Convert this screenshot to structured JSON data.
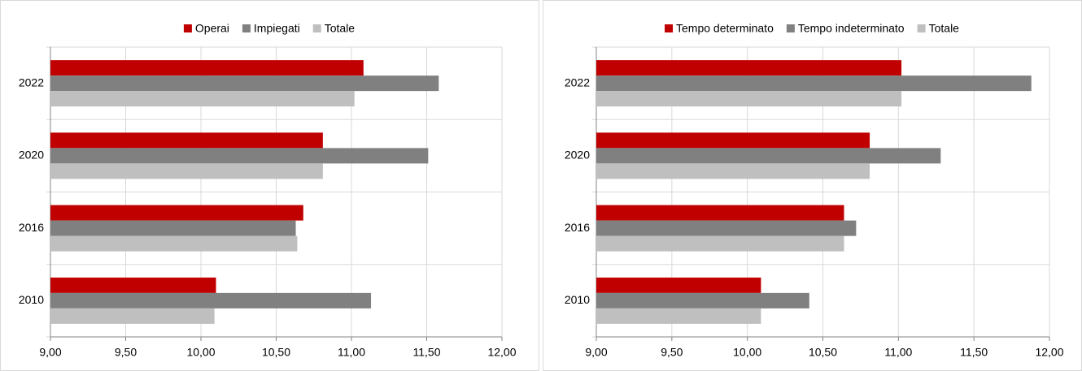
{
  "chart_data": [
    {
      "type": "hbar",
      "categories": [
        "2010",
        "2016",
        "2020",
        "2022"
      ],
      "series": [
        {
          "name": "Operai",
          "color": "#c00000",
          "values": [
            10.1,
            10.68,
            10.81,
            11.08
          ]
        },
        {
          "name": "Impiegati",
          "color": "#808080",
          "values": [
            11.13,
            10.63,
            11.51,
            11.58
          ]
        },
        {
          "name": "Totale",
          "color": "#bfbfbf",
          "values": [
            10.09,
            10.64,
            10.81,
            11.02
          ]
        }
      ],
      "xlim": [
        9,
        12
      ],
      "xticks": [
        {
          "value": 9,
          "label": "9,00"
        },
        {
          "value": 9.5,
          "label": "9,50"
        },
        {
          "value": 10,
          "label": "10,00"
        },
        {
          "value": 10.5,
          "label": "10,50"
        },
        {
          "value": 11,
          "label": "11,00"
        },
        {
          "value": 11.5,
          "label": "11,50"
        },
        {
          "value": 12,
          "label": "12,00"
        }
      ],
      "grid": true,
      "legend": "top"
    },
    {
      "type": "hbar",
      "categories": [
        "2010",
        "2016",
        "2020",
        "2022"
      ],
      "series": [
        {
          "name": "Tempo determinato",
          "color": "#c00000",
          "values": [
            10.09,
            10.64,
            10.81,
            11.02
          ]
        },
        {
          "name": "Tempo indeterminato",
          "color": "#808080",
          "values": [
            10.41,
            10.72,
            11.28,
            11.88
          ]
        },
        {
          "name": "Totale",
          "color": "#bfbfbf",
          "values": [
            10.09,
            10.64,
            10.81,
            11.02
          ]
        }
      ],
      "xlim": [
        9,
        12
      ],
      "xticks": [
        {
          "value": 9,
          "label": "9,00"
        },
        {
          "value": 9.5,
          "label": "9,50"
        },
        {
          "value": 10,
          "label": "10,00"
        },
        {
          "value": 10.5,
          "label": "10,50"
        },
        {
          "value": 11,
          "label": "11,00"
        },
        {
          "value": 11.5,
          "label": "11,50"
        },
        {
          "value": 12,
          "label": "12,00"
        }
      ],
      "grid": true,
      "legend": "top"
    }
  ]
}
